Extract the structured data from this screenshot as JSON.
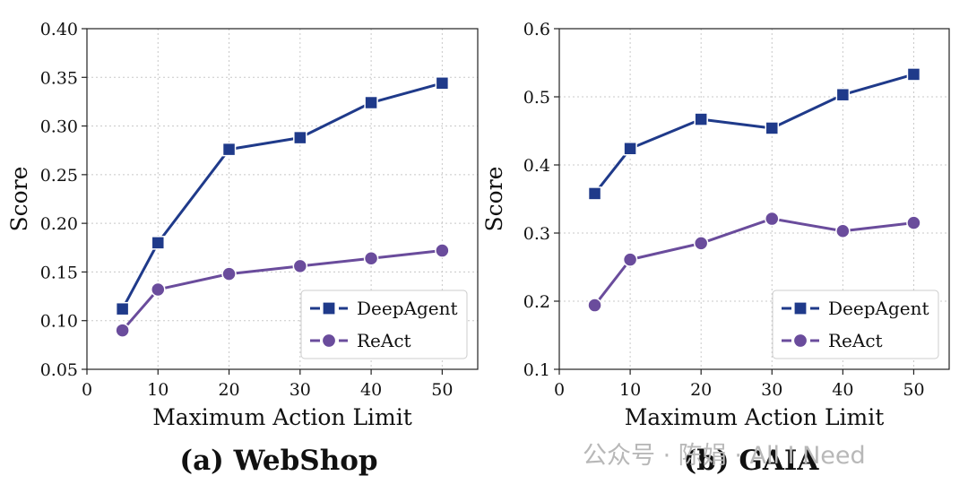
{
  "chart_data": [
    {
      "type": "line",
      "caption": "(a) WebShop",
      "xlabel": "Maximum Action Limit",
      "ylabel": "Score",
      "xlim": [
        0,
        55
      ],
      "ylim": [
        0.05,
        0.4
      ],
      "xticks": [
        0,
        10,
        20,
        30,
        40,
        50
      ],
      "yticks": [
        0.05,
        0.1,
        0.15,
        0.2,
        0.25,
        0.3,
        0.35,
        0.4
      ],
      "ytick_decimals": 2,
      "grid": true,
      "legend_position": "lower-right",
      "x": [
        5,
        10,
        20,
        30,
        40,
        50
      ],
      "series": [
        {
          "name": "DeepAgent",
          "color": "#1f3a8a",
          "marker": "square",
          "values": [
            0.112,
            0.18,
            0.276,
            0.288,
            0.324,
            0.344
          ]
        },
        {
          "name": "ReAct",
          "color": "#6a4c9c",
          "marker": "circle",
          "values": [
            0.09,
            0.132,
            0.148,
            0.156,
            0.164,
            0.172
          ]
        }
      ]
    },
    {
      "type": "line",
      "caption": "(b) GAIA",
      "xlabel": "Maximum Action Limit",
      "ylabel": "Score",
      "xlim": [
        0,
        55
      ],
      "ylim": [
        0.1,
        0.6
      ],
      "xticks": [
        0,
        10,
        20,
        30,
        40,
        50
      ],
      "yticks": [
        0.1,
        0.2,
        0.3,
        0.4,
        0.5,
        0.6
      ],
      "ytick_decimals": 1,
      "grid": true,
      "legend_position": "lower-right",
      "x": [
        5,
        10,
        20,
        30,
        40,
        50
      ],
      "series": [
        {
          "name": "DeepAgent",
          "color": "#1f3a8a",
          "marker": "square",
          "values": [
            0.358,
            0.424,
            0.467,
            0.454,
            0.503,
            0.533
          ]
        },
        {
          "name": "ReAct",
          "color": "#6a4c9c",
          "marker": "circle",
          "values": [
            0.194,
            0.261,
            0.285,
            0.321,
            0.303,
            0.315
          ]
        }
      ]
    }
  ],
  "watermark": "公众号 · 陈娟 · All I Need"
}
